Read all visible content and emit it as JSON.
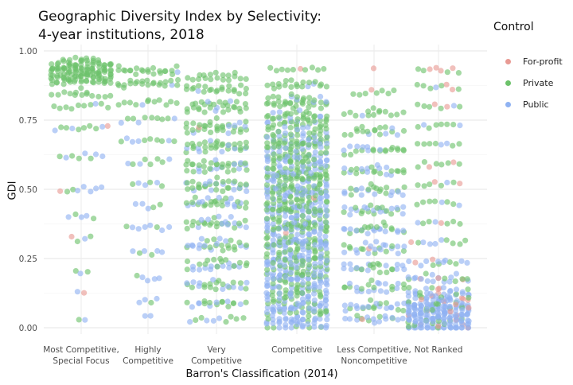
{
  "chart_data": {
    "type": "scatter",
    "title": "Geographic Diversity Index by Selectivity:",
    "subtitle": "4-year institutions, 2018",
    "xlabel": "Barron's Classification (2014)",
    "ylabel": "GDI",
    "ylim": [
      0,
      1
    ],
    "y_ticks": [
      "0.00",
      "0.25",
      "0.50",
      "0.75",
      "1.00"
    ],
    "grid": true,
    "legend_position": "right",
    "legend_title": "Control",
    "categories": [
      [
        "Most Competitive,",
        "Special Focus"
      ],
      [
        "Highly",
        "Competitive"
      ],
      [
        "Very",
        "Competitive"
      ],
      [
        "Competitive"
      ],
      [
        "Less Competitive,",
        "Noncompetitive"
      ],
      [
        "Not Ranked"
      ]
    ],
    "series": [
      {
        "name": "For-profit",
        "color": "#e89a93"
      },
      {
        "name": "Private",
        "color": "#6cc26a"
      },
      {
        "name": "Public",
        "color": "#8fb2f2"
      }
    ],
    "distribution_note": "beeswarm of institutions per category; counts/values approximate",
    "groups": [
      {
        "category": 0,
        "seed": 11,
        "bins": [
          {
            "y": 0.95,
            "n": 40,
            "series": {
              "Private": 1.0
            }
          },
          {
            "y": 0.925,
            "n": 60,
            "series": {
              "Private": 1.0
            }
          },
          {
            "y": 0.9,
            "n": 30,
            "series": {
              "Private": 1.0
            }
          },
          {
            "y": 0.85,
            "n": 14,
            "series": {
              "Private": 1.0
            }
          },
          {
            "y": 0.8,
            "n": 10,
            "series": {
              "Private": 0.9,
              "Public": 0.1
            }
          },
          {
            "y": 0.72,
            "n": 10,
            "series": {
              "Private": 0.6,
              "Public": 0.3,
              "For-profit": 0.1
            }
          },
          {
            "y": 0.62,
            "n": 8,
            "series": {
              "Private": 0.5,
              "Public": 0.5
            }
          },
          {
            "y": 0.5,
            "n": 8,
            "series": {
              "Public": 0.6,
              "Private": 0.3,
              "For-profit": 0.1
            }
          },
          {
            "y": 0.4,
            "n": 5,
            "series": {
              "Public": 0.6,
              "Private": 0.4
            }
          },
          {
            "y": 0.32,
            "n": 4,
            "series": {
              "Private": 0.5,
              "Public": 0.3,
              "For-profit": 0.2
            }
          },
          {
            "y": 0.2,
            "n": 3,
            "series": {
              "Private": 0.6,
              "Public": 0.4
            }
          },
          {
            "y": 0.13,
            "n": 2,
            "series": {
              "Public": 0.5,
              "For-profit": 0.5
            }
          },
          {
            "y": 0.02,
            "n": 2,
            "series": {
              "Private": 0.5,
              "Public": 0.5
            }
          }
        ]
      },
      {
        "category": 1,
        "seed": 23,
        "bins": [
          {
            "y": 0.93,
            "n": 22,
            "series": {
              "Private": 0.95,
              "Public": 0.05
            }
          },
          {
            "y": 0.88,
            "n": 22,
            "series": {
              "Private": 0.95,
              "Public": 0.05
            }
          },
          {
            "y": 0.82,
            "n": 12,
            "series": {
              "Private": 0.9,
              "Public": 0.1
            }
          },
          {
            "y": 0.75,
            "n": 10,
            "series": {
              "Private": 0.7,
              "Public": 0.3
            }
          },
          {
            "y": 0.68,
            "n": 10,
            "series": {
              "Private": 0.6,
              "Public": 0.4
            }
          },
          {
            "y": 0.6,
            "n": 8,
            "series": {
              "Private": 0.6,
              "Public": 0.4
            }
          },
          {
            "y": 0.52,
            "n": 6,
            "series": {
              "Public": 0.5,
              "Private": 0.5
            }
          },
          {
            "y": 0.44,
            "n": 5,
            "series": {
              "Public": 0.5,
              "Private": 0.5
            }
          },
          {
            "y": 0.36,
            "n": 8,
            "series": {
              "Public": 0.7,
              "Private": 0.3
            }
          },
          {
            "y": 0.27,
            "n": 6,
            "series": {
              "Public": 0.6,
              "Private": 0.4
            }
          },
          {
            "y": 0.18,
            "n": 5,
            "series": {
              "Public": 0.7,
              "Private": 0.3
            }
          },
          {
            "y": 0.1,
            "n": 4,
            "series": {
              "Public": 0.7,
              "Private": 0.3
            }
          },
          {
            "y": 0.04,
            "n": 2,
            "series": {
              "Public": 1.0
            }
          }
        ]
      },
      {
        "category": 2,
        "seed": 37,
        "bins": [
          {
            "y": 0.91,
            "n": 18,
            "series": {
              "Private": 1.0
            }
          },
          {
            "y": 0.86,
            "n": 22,
            "series": {
              "Private": 0.95,
              "Public": 0.05
            }
          },
          {
            "y": 0.8,
            "n": 30,
            "series": {
              "Private": 0.85,
              "Public": 0.15
            }
          },
          {
            "y": 0.73,
            "n": 34,
            "series": {
              "Private": 0.8,
              "Public": 0.18,
              "For-profit": 0.02
            }
          },
          {
            "y": 0.66,
            "n": 34,
            "series": {
              "Private": 0.75,
              "Public": 0.25
            }
          },
          {
            "y": 0.59,
            "n": 34,
            "series": {
              "Private": 0.7,
              "Public": 0.3
            }
          },
          {
            "y": 0.52,
            "n": 34,
            "series": {
              "Private": 0.65,
              "Public": 0.35
            }
          },
          {
            "y": 0.45,
            "n": 30,
            "series": {
              "Private": 0.6,
              "Public": 0.4
            }
          },
          {
            "y": 0.38,
            "n": 28,
            "series": {
              "Private": 0.6,
              "Public": 0.4
            }
          },
          {
            "y": 0.3,
            "n": 28,
            "series": {
              "Private": 0.55,
              "Public": 0.45
            }
          },
          {
            "y": 0.23,
            "n": 26,
            "series": {
              "Private": 0.55,
              "Public": 0.45
            }
          },
          {
            "y": 0.16,
            "n": 24,
            "series": {
              "Private": 0.6,
              "Public": 0.4
            }
          },
          {
            "y": 0.09,
            "n": 18,
            "series": {
              "Private": 0.6,
              "Public": 0.4
            }
          },
          {
            "y": 0.03,
            "n": 10,
            "series": {
              "Private": 0.6,
              "Public": 0.4
            }
          }
        ]
      },
      {
        "category": 3,
        "seed": 51,
        "bins": [
          {
            "y": 0.93,
            "n": 10,
            "series": {
              "Private": 0.9,
              "For-profit": 0.1
            }
          },
          {
            "y": 0.88,
            "n": 20,
            "series": {
              "Private": 0.9,
              "Public": 0.1
            }
          },
          {
            "y": 0.82,
            "n": 36,
            "series": {
              "Private": 0.85,
              "Public": 0.15
            }
          },
          {
            "y": 0.76,
            "n": 48,
            "series": {
              "Private": 0.75,
              "Public": 0.25
            }
          },
          {
            "y": 0.7,
            "n": 56,
            "series": {
              "Private": 0.6,
              "Public": 0.4
            }
          },
          {
            "y": 0.64,
            "n": 64,
            "series": {
              "Private": 0.6,
              "Public": 0.4
            }
          },
          {
            "y": 0.58,
            "n": 70,
            "series": {
              "Private": 0.55,
              "Public": 0.45
            }
          },
          {
            "y": 0.52,
            "n": 74,
            "series": {
              "Private": 0.55,
              "Public": 0.45
            }
          },
          {
            "y": 0.46,
            "n": 74,
            "series": {
              "Private": 0.55,
              "Public": 0.43,
              "For-profit": 0.02
            }
          },
          {
            "y": 0.4,
            "n": 72,
            "series": {
              "Private": 0.5,
              "Public": 0.5
            }
          },
          {
            "y": 0.34,
            "n": 70,
            "series": {
              "Private": 0.45,
              "Public": 0.53,
              "For-profit": 0.02
            }
          },
          {
            "y": 0.28,
            "n": 70,
            "series": {
              "Private": 0.45,
              "Public": 0.55
            }
          },
          {
            "y": 0.22,
            "n": 68,
            "series": {
              "Private": 0.45,
              "Public": 0.55
            }
          },
          {
            "y": 0.16,
            "n": 64,
            "series": {
              "Private": 0.4,
              "Public": 0.6
            }
          },
          {
            "y": 0.1,
            "n": 58,
            "series": {
              "Private": 0.35,
              "Public": 0.65
            }
          },
          {
            "y": 0.05,
            "n": 46,
            "series": {
              "Private": 0.3,
              "Public": 0.7
            }
          },
          {
            "y": 0.01,
            "n": 24,
            "series": {
              "Private": 0.2,
              "Public": 0.8
            }
          }
        ]
      },
      {
        "category": 4,
        "seed": 67,
        "bins": [
          {
            "y": 0.94,
            "n": 1,
            "series": {
              "For-profit": 1.0
            }
          },
          {
            "y": 0.85,
            "n": 8,
            "series": {
              "Private": 0.85,
              "For-profit": 0.15
            }
          },
          {
            "y": 0.78,
            "n": 14,
            "series": {
              "Private": 0.9,
              "Public": 0.1
            }
          },
          {
            "y": 0.71,
            "n": 18,
            "series": {
              "Private": 0.8,
              "Public": 0.2
            }
          },
          {
            "y": 0.64,
            "n": 22,
            "series": {
              "Private": 0.7,
              "Public": 0.3
            }
          },
          {
            "y": 0.57,
            "n": 24,
            "series": {
              "Private": 0.6,
              "Public": 0.4
            }
          },
          {
            "y": 0.5,
            "n": 24,
            "series": {
              "Private": 0.55,
              "Public": 0.45
            }
          },
          {
            "y": 0.43,
            "n": 26,
            "series": {
              "Private": 0.45,
              "Public": 0.55
            }
          },
          {
            "y": 0.36,
            "n": 26,
            "series": {
              "Private": 0.45,
              "Public": 0.55
            }
          },
          {
            "y": 0.29,
            "n": 26,
            "series": {
              "Private": 0.4,
              "Public": 0.57,
              "For-profit": 0.03
            }
          },
          {
            "y": 0.22,
            "n": 24,
            "series": {
              "Private": 0.45,
              "Public": 0.55
            }
          },
          {
            "y": 0.15,
            "n": 24,
            "series": {
              "Private": 0.45,
              "Public": 0.55
            }
          },
          {
            "y": 0.08,
            "n": 24,
            "series": {
              "Private": 0.4,
              "Public": 0.6
            }
          },
          {
            "y": 0.03,
            "n": 18,
            "series": {
              "Private": 0.3,
              "Public": 0.65,
              "For-profit": 0.05
            }
          }
        ]
      },
      {
        "category": 5,
        "seed": 83,
        "bins": [
          {
            "y": 0.93,
            "n": 8,
            "series": {
              "Private": 0.5,
              "For-profit": 0.5
            }
          },
          {
            "y": 0.87,
            "n": 8,
            "series": {
              "Private": 0.6,
              "For-profit": 0.3,
              "Public": 0.1
            }
          },
          {
            "y": 0.8,
            "n": 8,
            "series": {
              "Private": 0.6,
              "For-profit": 0.3,
              "Public": 0.1
            }
          },
          {
            "y": 0.73,
            "n": 8,
            "series": {
              "Private": 0.7,
              "Public": 0.2,
              "For-profit": 0.1
            }
          },
          {
            "y": 0.66,
            "n": 8,
            "series": {
              "Private": 0.7,
              "Public": 0.2,
              "For-profit": 0.1
            }
          },
          {
            "y": 0.59,
            "n": 8,
            "series": {
              "Private": 0.75,
              "For-profit": 0.25
            }
          },
          {
            "y": 0.52,
            "n": 8,
            "series": {
              "Private": 0.65,
              "For-profit": 0.2,
              "Public": 0.15
            }
          },
          {
            "y": 0.45,
            "n": 8,
            "series": {
              "Private": 0.7,
              "Public": 0.2,
              "For-profit": 0.1
            }
          },
          {
            "y": 0.38,
            "n": 8,
            "series": {
              "Private": 0.6,
              "Public": 0.3,
              "For-profit": 0.1
            }
          },
          {
            "y": 0.31,
            "n": 10,
            "series": {
              "Private": 0.5,
              "Public": 0.4,
              "For-profit": 0.1
            }
          },
          {
            "y": 0.24,
            "n": 14,
            "series": {
              "Public": 0.55,
              "Private": 0.3,
              "For-profit": 0.15
            }
          },
          {
            "y": 0.18,
            "n": 22,
            "series": {
              "Public": 0.6,
              "Private": 0.25,
              "For-profit": 0.15
            }
          },
          {
            "y": 0.13,
            "n": 34,
            "series": {
              "Public": 0.65,
              "Private": 0.2,
              "For-profit": 0.15
            }
          },
          {
            "y": 0.09,
            "n": 48,
            "series": {
              "Public": 0.75,
              "Private": 0.15,
              "For-profit": 0.1
            }
          },
          {
            "y": 0.055,
            "n": 70,
            "series": {
              "Public": 0.8,
              "Private": 0.12,
              "For-profit": 0.08
            }
          },
          {
            "y": 0.025,
            "n": 80,
            "series": {
              "Public": 0.85,
              "Private": 0.1,
              "For-profit": 0.05
            }
          }
        ]
      }
    ]
  }
}
